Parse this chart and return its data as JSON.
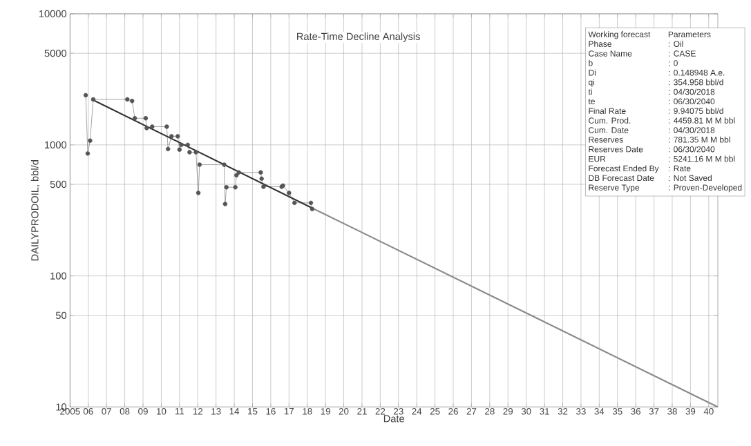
{
  "chart_data": {
    "type": "line",
    "xlabel": "Date",
    "ylabel": "DAILYPRODOIL, bbl/d",
    "log": "y",
    "grid": true,
    "xlim": [
      2005,
      2040.5
    ],
    "ylim": [
      10,
      10000
    ],
    "xticks": [
      {
        "value": 2005,
        "label": "2005"
      },
      {
        "value": 2006,
        "label": "06"
      },
      {
        "value": 2007,
        "label": "07"
      },
      {
        "value": 2008,
        "label": "08"
      },
      {
        "value": 2009,
        "label": "09"
      },
      {
        "value": 2010,
        "label": "10"
      },
      {
        "value": 2011,
        "label": "11"
      },
      {
        "value": 2012,
        "label": "12"
      },
      {
        "value": 2013,
        "label": "13"
      },
      {
        "value": 2014,
        "label": "14"
      },
      {
        "value": 2015,
        "label": "15"
      },
      {
        "value": 2016,
        "label": "16"
      },
      {
        "value": 2017,
        "label": "17"
      },
      {
        "value": 2018,
        "label": "18"
      },
      {
        "value": 2019,
        "label": "19"
      },
      {
        "value": 2020,
        "label": "20"
      },
      {
        "value": 2021,
        "label": "21"
      },
      {
        "value": 2022,
        "label": "22"
      },
      {
        "value": 2023,
        "label": "23"
      },
      {
        "value": 2024,
        "label": "24"
      },
      {
        "value": 2025,
        "label": "25"
      },
      {
        "value": 2026,
        "label": "26"
      },
      {
        "value": 2027,
        "label": "27"
      },
      {
        "value": 2028,
        "label": "28"
      },
      {
        "value": 2029,
        "label": "29"
      },
      {
        "value": 2030,
        "label": "30"
      },
      {
        "value": 2031,
        "label": "31"
      },
      {
        "value": 2032,
        "label": "32"
      },
      {
        "value": 2033,
        "label": "33"
      },
      {
        "value": 2034,
        "label": "34"
      },
      {
        "value": 2035,
        "label": "35"
      },
      {
        "value": 2036,
        "label": "36"
      },
      {
        "value": 2037,
        "label": "37"
      },
      {
        "value": 2038,
        "label": "38"
      },
      {
        "value": 2039,
        "label": "39"
      },
      {
        "value": 2040,
        "label": "40"
      }
    ],
    "yticks": [
      10,
      50,
      100,
      500,
      1000,
      5000,
      10000
    ],
    "series": [
      {
        "color": "#555555",
        "marker": "circle",
        "x": [
          2005.86,
          2005.97,
          2006.1,
          2006.27,
          2008.14,
          2008.4,
          2008.55,
          2009.15,
          2009.2,
          2009.5,
          2010.3,
          2010.37,
          2010.56,
          2010.9,
          2011.0,
          2011.1,
          2011.45,
          2011.55,
          2011.9,
          2012.03,
          2012.1,
          2013.45,
          2013.5,
          2013.57,
          2014.06,
          2014.12,
          2014.25,
          2015.45,
          2015.5,
          2015.6,
          2016.6,
          2016.67,
          2017.0,
          2017.3,
          2018.2,
          2018.27
        ],
        "values": [
          2393,
          859,
          1076,
          2223,
          2223,
          2162,
          1596,
          1596,
          1342,
          1377,
          1377,
          930,
          1163,
          1163,
          919,
          1000,
          1000,
          878,
          878,
          430,
          706,
          706,
          354,
          475,
          475,
          586,
          616,
          616,
          552,
          479,
          479,
          489,
          430,
          361,
          361,
          324
        ]
      },
      {
        "color": "#333333",
        "marker": "none",
        "x": [
          2006.2,
          2018.3
        ],
        "values": [
          2223,
          328
        ]
      },
      {
        "color": "#8a8a8a",
        "marker": "none",
        "x": [
          2018.3,
          2040.5
        ],
        "values": [
          328,
          10
        ]
      }
    ],
    "annotations": [
      "Rate-Time Decline Analysis",
      "Working forecast",
      "Parameters",
      "Phase",
      ": Oil",
      "Case Name",
      ": CASE",
      "b",
      ": 0",
      "Di",
      ": 0.148948 A.e.",
      "qi",
      ": 354.958 bbl/d",
      "ti",
      ": 04/30/2018",
      "te",
      ": 06/30/2040",
      "Final Rate",
      ": 9.94075 bbl/d",
      "Cum. Prod.",
      ": 4459.81 M M bbl",
      "Cum. Date",
      ": 04/30/2018",
      "Reserves",
      ": 781.35 M M bbl",
      "Reserves Date",
      ": 06/30/2040",
      "EUR",
      ": 5241.16 M M bbl",
      "Forecast Ended By",
      ": Rate",
      "DB Forecast Date",
      ": Not Saved",
      "Reserve Type",
      ": Proven-Developed"
    ]
  }
}
